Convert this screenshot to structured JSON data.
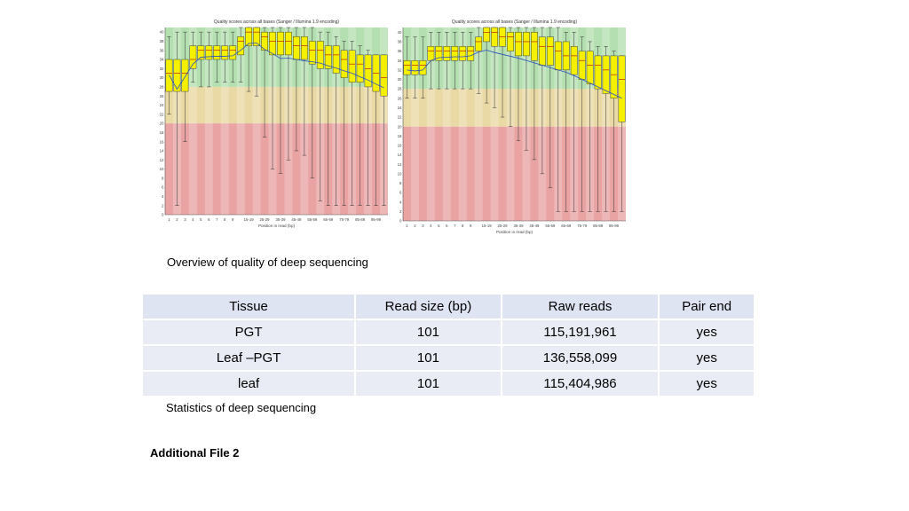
{
  "charts_caption": "Overview of quality of deep sequencing",
  "table_caption": "Statistics of deep sequencing",
  "footer": "Additional File 2",
  "table": {
    "headers": [
      "Tissue",
      "Read size (bp)",
      "Raw reads",
      "Pair end"
    ],
    "rows": [
      [
        "PGT",
        "101",
        "115,191,961",
        "yes"
      ],
      [
        "Leaf –PGT",
        "101",
        "136,558,099",
        "yes"
      ],
      [
        "leaf",
        "101",
        "115,404,986",
        "yes"
      ]
    ]
  },
  "chart_data": [
    {
      "type": "box",
      "title": "Quality scores across all bases (Sanger / Illumina 1.9 encoding)",
      "xlabel": "Position in read (bp)",
      "categories": [
        "1",
        "2",
        "3",
        "4",
        "5",
        "6",
        "7",
        "8",
        "9",
        "10-14",
        "15-19",
        "20-24",
        "25-29",
        "30-34",
        "35-39",
        "40-44",
        "45-49",
        "50-54",
        "55-59",
        "60-64",
        "65-69",
        "70-74",
        "75-79",
        "80-84",
        "85-89",
        "90-94",
        "95-99",
        "100-101"
      ],
      "x_tick_labels": [
        "1",
        "2",
        "3",
        "4",
        "5",
        "6",
        "7",
        "8",
        "9",
        "15-19",
        "25-29",
        "35-39",
        "45-49",
        "55-59",
        "65-69",
        "75-79",
        "85-89",
        "95-99"
      ],
      "ylim": [
        0,
        41
      ],
      "y_ticks": [
        0,
        2,
        4,
        6,
        8,
        10,
        12,
        14,
        16,
        18,
        20,
        22,
        24,
        26,
        28,
        30,
        32,
        34,
        36,
        38,
        40
      ],
      "bands": [
        {
          "from": 0,
          "to": 20,
          "color": "#e9a3a3"
        },
        {
          "from": 20,
          "to": 28,
          "color": "#e9d9a4"
        },
        {
          "from": 28,
          "to": 41,
          "color": "#b4dfb0"
        }
      ],
      "q1": [
        27,
        27,
        27,
        32,
        34,
        34,
        34,
        34,
        34,
        35,
        37,
        37,
        36,
        35,
        35,
        35,
        34,
        34,
        33,
        32,
        32,
        31,
        30,
        29,
        29,
        28,
        27,
        26
      ],
      "q3": [
        34,
        34,
        34,
        37,
        37,
        37,
        37,
        37,
        37,
        39,
        41,
        41,
        40,
        40,
        40,
        40,
        39,
        39,
        38,
        38,
        37,
        37,
        36,
        36,
        35,
        35,
        35,
        35
      ],
      "median": [
        31,
        31,
        31,
        34,
        36,
        36,
        36,
        36,
        36,
        38,
        40,
        40,
        39,
        38,
        38,
        38,
        37,
        37,
        36,
        36,
        35,
        35,
        34,
        33,
        33,
        32,
        31,
        30
      ],
      "low": [
        22,
        2,
        16,
        29,
        28,
        28,
        29,
        29,
        29,
        29,
        27,
        26,
        17,
        10,
        9,
        12,
        14,
        13,
        8,
        3,
        2,
        2,
        2,
        2,
        2,
        2,
        2,
        2
      ],
      "high": [
        39,
        40,
        40,
        40,
        40,
        40,
        40,
        40,
        40,
        41,
        41,
        41,
        41,
        41,
        41,
        41,
        41,
        41,
        41,
        40,
        40,
        39,
        38,
        38,
        37,
        36,
        35,
        35
      ],
      "mean": [
        30.6,
        27.5,
        30.2,
        33,
        34.5,
        34.6,
        34.7,
        34.7,
        34.8,
        36,
        37.5,
        37.6,
        36.2,
        35.3,
        34.2,
        34.3,
        34,
        33.7,
        33.5,
        33.2,
        32.6,
        32.1,
        31.5,
        31,
        30.2,
        29.5,
        28.6,
        27.8
      ]
    },
    {
      "type": "box",
      "title": "Quality scores across all bases (Sanger / Illumina 1.9 encoding)",
      "xlabel": "Position in read (bp)",
      "categories": [
        "1",
        "2",
        "3",
        "4",
        "5",
        "6",
        "7",
        "8",
        "9",
        "10-14",
        "15-19",
        "20-24",
        "25-29",
        "30-34",
        "35-39",
        "40-44",
        "45-49",
        "50-54",
        "55-59",
        "60-64",
        "65-69",
        "70-74",
        "75-79",
        "80-84",
        "85-89",
        "90-94",
        "95-99",
        "100-101"
      ],
      "x_tick_labels": [
        "1",
        "2",
        "3",
        "4",
        "5",
        "6",
        "7",
        "8",
        "9",
        "15-19",
        "25-29",
        "35-39",
        "45-49",
        "55-59",
        "65-69",
        "75-79",
        "85-89",
        "95-99"
      ],
      "ylim": [
        0,
        41
      ],
      "y_ticks": [
        0,
        2,
        4,
        6,
        8,
        10,
        12,
        14,
        16,
        18,
        20,
        22,
        24,
        26,
        28,
        30,
        32,
        34,
        36,
        38,
        40
      ],
      "bands": [
        {
          "from": 0,
          "to": 20,
          "color": "#e9a3a3"
        },
        {
          "from": 20,
          "to": 28,
          "color": "#e9d9a4"
        },
        {
          "from": 28,
          "to": 41,
          "color": "#b4dfb0"
        }
      ],
      "q1": [
        31,
        31,
        31,
        34,
        34,
        34,
        34,
        34,
        34,
        36,
        38,
        37,
        37,
        36,
        35,
        35,
        34,
        33,
        33,
        32,
        32,
        31,
        30,
        29,
        28,
        27,
        26,
        21
      ],
      "q3": [
        34,
        34,
        34,
        37,
        37,
        37,
        37,
        37,
        37,
        39,
        41,
        41,
        41,
        40,
        40,
        40,
        40,
        39,
        39,
        38,
        38,
        37,
        36,
        36,
        35,
        35,
        35,
        35
      ],
      "median": [
        33,
        33,
        33,
        36,
        36,
        36,
        36,
        36,
        36,
        38,
        40,
        40,
        39,
        39,
        38,
        38,
        38,
        37,
        37,
        36,
        35,
        35,
        34,
        33,
        33,
        32,
        31,
        30
      ],
      "low": [
        26,
        26,
        26,
        28,
        28,
        28,
        28,
        28,
        28,
        27,
        25,
        24,
        22,
        20,
        17,
        15,
        13,
        10,
        7,
        2,
        2,
        2,
        2,
        2,
        2,
        2,
        2,
        2
      ],
      "high": [
        39,
        39,
        39,
        40,
        40,
        40,
        40,
        40,
        40,
        41,
        41,
        41,
        41,
        41,
        41,
        41,
        41,
        41,
        41,
        41,
        40,
        40,
        39,
        38,
        37,
        37,
        36,
        35
      ],
      "mean": [
        32,
        31.8,
        32,
        34,
        34.6,
        34.7,
        34.8,
        34.8,
        35,
        35.8,
        36.2,
        35.7,
        35.3,
        34.9,
        34.5,
        34,
        33.5,
        33,
        32.5,
        32,
        31.5,
        30.8,
        30,
        29.2,
        28.4,
        27.6,
        26.8,
        26
      ]
    }
  ]
}
